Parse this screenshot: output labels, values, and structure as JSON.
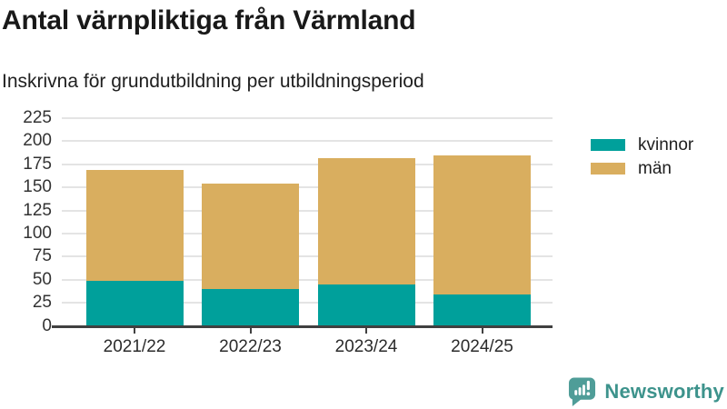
{
  "header": {
    "title": "Antal värnpliktiga från Värmland",
    "subtitle": "Inskrivna för grundutbildning per utbildningsperiod"
  },
  "chart_data": {
    "type": "bar",
    "stacked": true,
    "title": "Antal värnpliktiga från Värmland",
    "subtitle": "Inskrivna för grundutbildning per utbildningsperiod",
    "categories": [
      "2021/22",
      "2022/23",
      "2023/24",
      "2024/25"
    ],
    "series": [
      {
        "name": "kvinnor",
        "color": "#00a09b",
        "values": [
          49,
          40,
          45,
          34
        ]
      },
      {
        "name": "män",
        "color": "#d9ae5f",
        "values": [
          120,
          114,
          137,
          151
        ]
      }
    ],
    "totals": [
      169,
      154,
      182,
      185
    ],
    "xlabel": "",
    "ylabel": "",
    "ylim": [
      0,
      225
    ],
    "ytick_step": 25,
    "yticks": [
      0,
      25,
      50,
      75,
      100,
      125,
      150,
      175,
      200,
      225
    ],
    "grid": "horizontal",
    "legend_position": "right"
  },
  "watermark": {
    "brand": "Newsworthy",
    "icon": "newsworthy-speech-bubble-bar-chart-icon",
    "color": "#3d938c",
    "icon_color": "#4f9d98"
  }
}
